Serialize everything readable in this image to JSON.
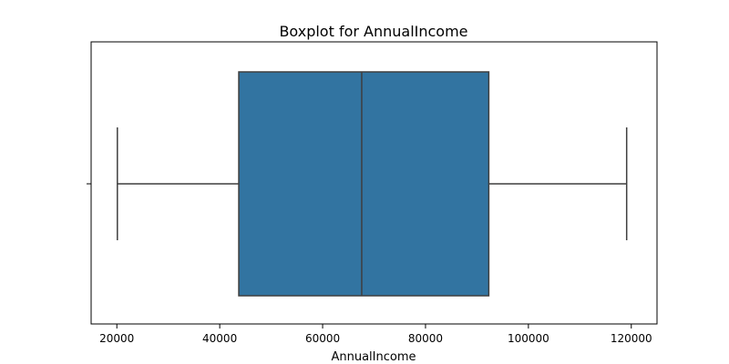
{
  "chart_data": {
    "type": "box",
    "title": "Boxplot for AnnualIncome",
    "xlabel": "AnnualIncome",
    "ylabel": "",
    "xlim": [
      15000,
      125000
    ],
    "xticks": [
      20000,
      40000,
      60000,
      80000,
      100000,
      120000
    ],
    "xtick_labels": [
      "20000",
      "40000",
      "60000",
      "80000",
      "100000",
      "120000"
    ],
    "grid": false,
    "orientation": "horizontal",
    "box": {
      "whisker_low": 20100,
      "q1": 43700,
      "median": 67600,
      "q3": 92300,
      "whisker_high": 119100
    },
    "colors": {
      "box_fill": "#3274a1",
      "line": "#3f3f3f",
      "axis": "#000000"
    }
  }
}
